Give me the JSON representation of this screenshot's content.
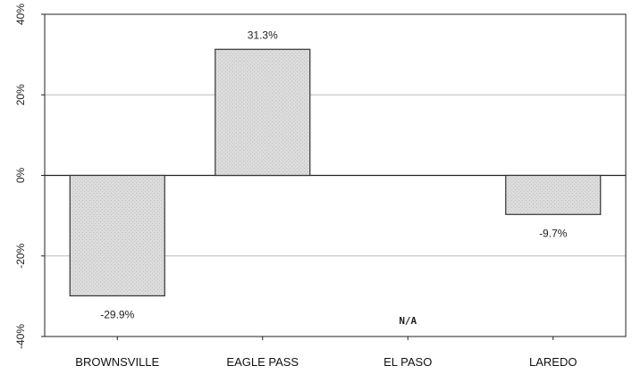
{
  "chart_data": {
    "type": "bar",
    "categories": [
      "BROWNSVILLE",
      "EAGLE PASS",
      "EL PASO",
      "LAREDO"
    ],
    "values": [
      -29.9,
      31.3,
      null,
      -9.7
    ],
    "data_labels": [
      "-29.9%",
      "31.3%",
      "N/A",
      "-9.7%"
    ],
    "title": "",
    "xlabel": "",
    "ylabel": "",
    "ylim": [
      -40,
      40
    ],
    "yticks": [
      40,
      20,
      0,
      -20,
      -40
    ],
    "ytick_labels": [
      "40%",
      "20%",
      "0%",
      "-20%",
      "-40%"
    ],
    "grid": true,
    "legend": "none",
    "colors": {
      "bar_fill": "#d9d9d9",
      "bar_stroke": "#333333",
      "grid": "#bbbbbb",
      "axis": "#222222"
    }
  }
}
